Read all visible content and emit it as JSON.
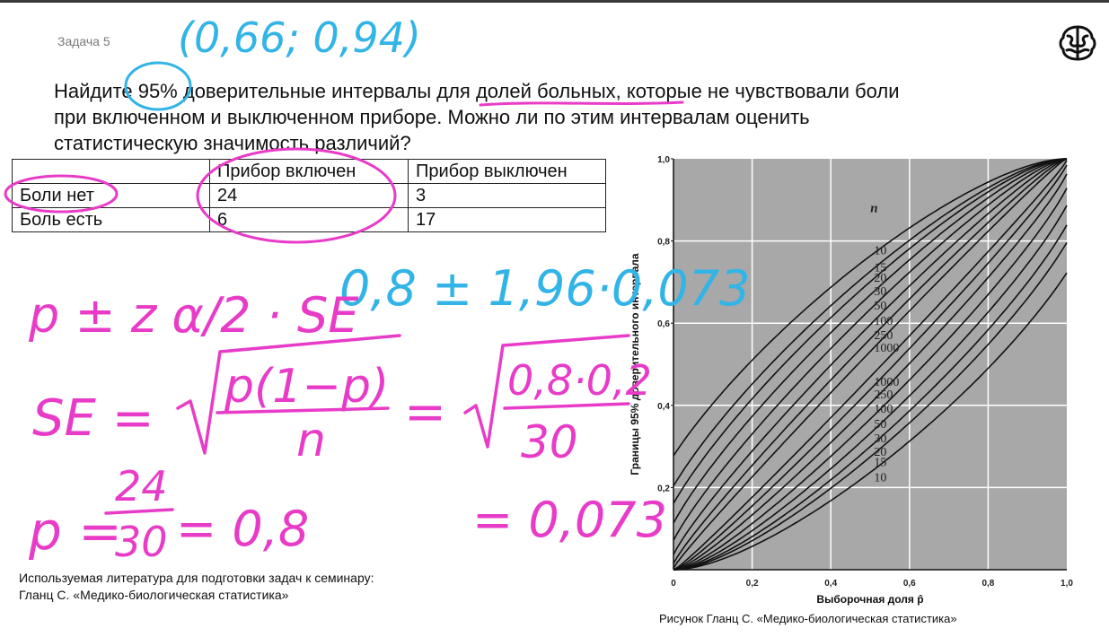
{
  "slide": {
    "task_label": "Задача 5",
    "question_lines": [
      "Найдите 95% доверительные интервалы для долей больных, которые не чувствовали боли",
      "при включенном и выключенном приборе. Можно ли по этим интервалам оценить",
      "статистическую значимость различий?"
    ],
    "table": {
      "header": [
        "",
        "Прибор включен",
        "Прибор выключен"
      ],
      "rows": [
        [
          "Боли нет",
          "24",
          "3"
        ],
        [
          "Боль есть",
          "6",
          "17"
        ]
      ]
    },
    "reference_lines": [
      "Используемая литература для подготовки задач к семинару:",
      "Гланц С. «Медико-биологическая статистика»"
    ],
    "figure_caption": "Рисунок Гланц С. «Медико-биологическая статистика»",
    "logo_icon": "brain-icon"
  },
  "annotations": {
    "blue_interval": "(0,66; 0,94)",
    "blue_calc": "0,8 ± 1,96·0,073",
    "pink_formula": "p ± z α/2 · SE",
    "pink_se": "SE =",
    "pink_se_num": "p(1−p)",
    "pink_se_den": "n",
    "pink_eq": "=",
    "pink_sub_num": "0,8·0,2",
    "pink_sub_den": "30",
    "pink_p": "p =",
    "pink_p_num": "24",
    "pink_p_den": "30",
    "pink_p_val": "= 0,8",
    "pink_se_val": "= 0,073",
    "colors": {
      "pink": "#e83cc8",
      "blue": "#32b4e6"
    }
  },
  "chart_data": {
    "type": "line",
    "xlabel": "Выборочная доля p̂",
    "ylabel": "Границы 95% доверительного интервала",
    "xlim": [
      0,
      1
    ],
    "ylim": [
      0,
      1
    ],
    "x_ticks": [
      "0",
      "0,2",
      "0,4",
      "0,6",
      "0,8",
      "1,0"
    ],
    "y_ticks": [
      "0,2",
      "0,4",
      "0,6",
      "0,8",
      "1,0"
    ],
    "grid": true,
    "background": "#a8a8a8",
    "legend_title": "n",
    "upper_labels": [
      "10",
      "15",
      "20",
      "30",
      "50",
      "100",
      "250",
      "1000"
    ],
    "lower_labels": [
      "1000",
      "250",
      "100",
      "50",
      "30",
      "20",
      "15",
      "10"
    ],
    "sample_sizes": [
      10,
      15,
      20,
      30,
      50,
      100,
      250,
      1000
    ]
  }
}
